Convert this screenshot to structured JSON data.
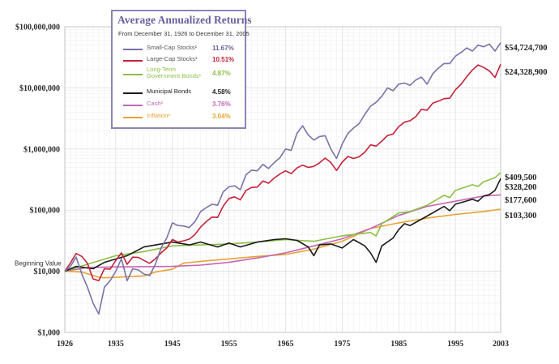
{
  "chart_data": {
    "type": "line",
    "title": "Average Annualized Returns",
    "subtitle": "From December 31, 1926 to December 31, 2005",
    "y_scale": "log",
    "ylim": [
      1000,
      100000000
    ],
    "xlim": [
      1926,
      2003
    ],
    "y_ticks": [
      {
        "value": 100000000,
        "label": "$100,000,000"
      },
      {
        "value": 10000000,
        "label": "$10,000,000"
      },
      {
        "value": 1000000,
        "label": "$1,000,000"
      },
      {
        "value": 100000,
        "label": "$100,000"
      },
      {
        "value": 10000,
        "label": "$10,000"
      },
      {
        "value": 1000,
        "label": "$1,000"
      }
    ],
    "x_ticks": [
      {
        "value": 1926,
        "label": "1926"
      },
      {
        "value": 1935,
        "label": "1935"
      },
      {
        "value": 1945,
        "label": "1945"
      },
      {
        "value": 1955,
        "label": "1955"
      },
      {
        "value": 1965,
        "label": "1965"
      },
      {
        "value": 1975,
        "label": "1975"
      },
      {
        "value": 1985,
        "label": "1985"
      },
      {
        "value": 1995,
        "label": "1995"
      },
      {
        "value": 2003,
        "label": "2003"
      }
    ],
    "baseline_label": "Beginning Value",
    "series": [
      {
        "name": "Small-Cap Stocks",
        "marker": "¹",
        "return": "11.67%",
        "color": "#7a72aa",
        "end_label": "$54,724,700",
        "points": [
          [
            1926,
            10000
          ],
          [
            1927,
            12000
          ],
          [
            1928,
            17000
          ],
          [
            1929,
            9000
          ],
          [
            1930,
            5500
          ],
          [
            1931,
            3000
          ],
          [
            1932,
            2000
          ],
          [
            1933,
            5500
          ],
          [
            1934,
            7000
          ],
          [
            1935,
            10000
          ],
          [
            1936,
            16000
          ],
          [
            1937,
            7000
          ],
          [
            1938,
            11000
          ],
          [
            1939,
            10500
          ],
          [
            1940,
            9000
          ],
          [
            1941,
            8500
          ],
          [
            1942,
            13000
          ],
          [
            1943,
            24000
          ],
          [
            1944,
            35000
          ],
          [
            1945,
            62000
          ],
          [
            1946,
            56000
          ],
          [
            1947,
            55000
          ],
          [
            1948,
            52000
          ],
          [
            1949,
            65000
          ],
          [
            1950,
            95000
          ],
          [
            1951,
            110000
          ],
          [
            1952,
            125000
          ],
          [
            1953,
            120000
          ],
          [
            1954,
            200000
          ],
          [
            1955,
            240000
          ],
          [
            1956,
            250000
          ],
          [
            1957,
            215000
          ],
          [
            1958,
            380000
          ],
          [
            1959,
            450000
          ],
          [
            1960,
            440000
          ],
          [
            1961,
            560000
          ],
          [
            1962,
            480000
          ],
          [
            1963,
            600000
          ],
          [
            1964,
            720000
          ],
          [
            1965,
            1000000
          ],
          [
            1966,
            950000
          ],
          [
            1967,
            1800000
          ],
          [
            1968,
            2400000
          ],
          [
            1969,
            1700000
          ],
          [
            1970,
            1400000
          ],
          [
            1971,
            1600000
          ],
          [
            1972,
            1650000
          ],
          [
            1973,
            1000000
          ],
          [
            1974,
            700000
          ],
          [
            1975,
            1200000
          ],
          [
            1976,
            1800000
          ],
          [
            1977,
            2200000
          ],
          [
            1978,
            2600000
          ],
          [
            1979,
            3700000
          ],
          [
            1980,
            5000000
          ],
          [
            1981,
            5800000
          ],
          [
            1982,
            7300000
          ],
          [
            1983,
            10000000
          ],
          [
            1984,
            9000000
          ],
          [
            1985,
            11500000
          ],
          [
            1986,
            12000000
          ],
          [
            1987,
            11000000
          ],
          [
            1988,
            13500000
          ],
          [
            1989,
            15000000
          ],
          [
            1990,
            11500000
          ],
          [
            1991,
            17000000
          ],
          [
            1992,
            21000000
          ],
          [
            1993,
            25000000
          ],
          [
            1994,
            25000000
          ],
          [
            1995,
            33000000
          ],
          [
            1996,
            38000000
          ],
          [
            1997,
            45000000
          ],
          [
            1998,
            40000000
          ],
          [
            1999,
            50000000
          ],
          [
            2000,
            47000000
          ],
          [
            2001,
            52000000
          ],
          [
            2002,
            40000000
          ],
          [
            2003,
            54724700
          ]
        ]
      },
      {
        "name": "Large-Cap Stocks",
        "marker": "¹",
        "return": "10.51%",
        "color": "#c5213a",
        "end_label": "$24,328,900",
        "points": [
          [
            1926,
            10000
          ],
          [
            1927,
            13700
          ],
          [
            1928,
            19500
          ],
          [
            1929,
            17500
          ],
          [
            1930,
            13500
          ],
          [
            1931,
            7500
          ],
          [
            1932,
            7000
          ],
          [
            1933,
            11000
          ],
          [
            1934,
            10800
          ],
          [
            1935,
            15000
          ],
          [
            1936,
            20000
          ],
          [
            1937,
            13000
          ],
          [
            1938,
            17000
          ],
          [
            1939,
            16800
          ],
          [
            1940,
            15000
          ],
          [
            1941,
            13500
          ],
          [
            1942,
            16000
          ],
          [
            1943,
            20000
          ],
          [
            1944,
            24000
          ],
          [
            1945,
            33000
          ],
          [
            1946,
            30000
          ],
          [
            1947,
            31500
          ],
          [
            1948,
            33500
          ],
          [
            1949,
            40000
          ],
          [
            1950,
            53000
          ],
          [
            1951,
            65000
          ],
          [
            1952,
            77000
          ],
          [
            1953,
            76000
          ],
          [
            1954,
            117000
          ],
          [
            1955,
            155000
          ],
          [
            1956,
            165000
          ],
          [
            1957,
            147000
          ],
          [
            1958,
            210000
          ],
          [
            1959,
            235000
          ],
          [
            1960,
            238000
          ],
          [
            1961,
            300000
          ],
          [
            1962,
            275000
          ],
          [
            1963,
            335000
          ],
          [
            1964,
            390000
          ],
          [
            1965,
            440000
          ],
          [
            1966,
            395000
          ],
          [
            1967,
            490000
          ],
          [
            1968,
            545000
          ],
          [
            1969,
            500000
          ],
          [
            1970,
            520000
          ],
          [
            1971,
            595000
          ],
          [
            1972,
            710000
          ],
          [
            1973,
            600000
          ],
          [
            1974,
            445000
          ],
          [
            1975,
            610000
          ],
          [
            1976,
            755000
          ],
          [
            1977,
            700000
          ],
          [
            1978,
            745000
          ],
          [
            1979,
            885000
          ],
          [
            1980,
            1170000
          ],
          [
            1981,
            1115000
          ],
          [
            1982,
            1350000
          ],
          [
            1983,
            1660000
          ],
          [
            1984,
            1760000
          ],
          [
            1985,
            2320000
          ],
          [
            1986,
            2750000
          ],
          [
            1987,
            2900000
          ],
          [
            1988,
            3380000
          ],
          [
            1989,
            4450000
          ],
          [
            1990,
            4320000
          ],
          [
            1991,
            5630000
          ],
          [
            1992,
            6060000
          ],
          [
            1993,
            6670000
          ],
          [
            1994,
            6760000
          ],
          [
            1995,
            9300000
          ],
          [
            1996,
            11440000
          ],
          [
            1997,
            15250000
          ],
          [
            1998,
            19610000
          ],
          [
            1999,
            23740000
          ],
          [
            2000,
            21580000
          ],
          [
            2001,
            19010000
          ],
          [
            2002,
            14810000
          ],
          [
            2003,
            24328900
          ]
        ]
      },
      {
        "name": "Long-Term Government Bonds",
        "marker": "¹",
        "return": "4.87%",
        "color": "#8cbf45",
        "end_label": "$409,500",
        "points": [
          [
            1926,
            10000
          ],
          [
            1930,
            13000
          ],
          [
            1935,
            18000
          ],
          [
            1940,
            21000
          ],
          [
            1945,
            26000
          ],
          [
            1950,
            27000
          ],
          [
            1955,
            28000
          ],
          [
            1960,
            30000
          ],
          [
            1965,
            33000
          ],
          [
            1970,
            31000
          ],
          [
            1975,
            38000
          ],
          [
            1980,
            43000
          ],
          [
            1981,
            38000
          ],
          [
            1982,
            60000
          ],
          [
            1985,
            90000
          ],
          [
            1987,
            95000
          ],
          [
            1990,
            120000
          ],
          [
            1993,
            175000
          ],
          [
            1994,
            160000
          ],
          [
            1995,
            210000
          ],
          [
            1998,
            260000
          ],
          [
            1999,
            245000
          ],
          [
            2000,
            290000
          ],
          [
            2002,
            340000
          ],
          [
            2003,
            409500
          ]
        ]
      },
      {
        "name": "Municipal Bonds",
        "marker": "",
        "return": "4.58%",
        "color": "#1a1a1a",
        "end_label": "$328,200",
        "points": [
          [
            1926,
            10000
          ],
          [
            1928,
            12000
          ],
          [
            1931,
            11000
          ],
          [
            1933,
            14000
          ],
          [
            1937,
            18000
          ],
          [
            1940,
            25000
          ],
          [
            1945,
            30000
          ],
          [
            1948,
            27000
          ],
          [
            1950,
            30000
          ],
          [
            1953,
            25000
          ],
          [
            1955,
            29000
          ],
          [
            1957,
            25000
          ],
          [
            1960,
            30000
          ],
          [
            1963,
            33000
          ],
          [
            1965,
            34000
          ],
          [
            1967,
            32000
          ],
          [
            1969,
            25000
          ],
          [
            1970,
            18000
          ],
          [
            1971,
            27000
          ],
          [
            1973,
            28000
          ],
          [
            1975,
            24000
          ],
          [
            1977,
            33000
          ],
          [
            1979,
            26000
          ],
          [
            1980,
            20000
          ],
          [
            1981,
            14000
          ],
          [
            1982,
            26000
          ],
          [
            1984,
            35000
          ],
          [
            1985,
            48000
          ],
          [
            1986,
            60000
          ],
          [
            1987,
            56000
          ],
          [
            1990,
            80000
          ],
          [
            1993,
            115000
          ],
          [
            1994,
            98000
          ],
          [
            1995,
            125000
          ],
          [
            1998,
            150000
          ],
          [
            1999,
            140000
          ],
          [
            2000,
            170000
          ],
          [
            2001,
            180000
          ],
          [
            2002,
            210000
          ],
          [
            2003,
            328200
          ]
        ]
      },
      {
        "name": "Cash",
        "marker": "²",
        "return": "3.76%",
        "color": "#c466b4",
        "end_label": "$177,600",
        "points": [
          [
            1926,
            10000
          ],
          [
            1930,
            11500
          ],
          [
            1935,
            11800
          ],
          [
            1940,
            11900
          ],
          [
            1945,
            12000
          ],
          [
            1950,
            12600
          ],
          [
            1955,
            14000
          ],
          [
            1960,
            16500
          ],
          [
            1965,
            20000
          ],
          [
            1970,
            26000
          ],
          [
            1975,
            34000
          ],
          [
            1980,
            50000
          ],
          [
            1985,
            82000
          ],
          [
            1990,
            115000
          ],
          [
            1995,
            140000
          ],
          [
            2000,
            170000
          ],
          [
            2003,
            177600
          ]
        ]
      },
      {
        "name": "Inflation",
        "marker": "³",
        "return": "3.04%",
        "color": "#e6a334",
        "end_label": "$103,300",
        "points": [
          [
            1926,
            10000
          ],
          [
            1929,
            9700
          ],
          [
            1932,
            8000
          ],
          [
            1933,
            7800
          ],
          [
            1940,
            8400
          ],
          [
            1942,
            9700
          ],
          [
            1945,
            10800
          ],
          [
            1947,
            13600
          ],
          [
            1950,
            14500
          ],
          [
            1955,
            15900
          ],
          [
            1960,
            17500
          ],
          [
            1965,
            18800
          ],
          [
            1970,
            23000
          ],
          [
            1975,
            31000
          ],
          [
            1980,
            50000
          ],
          [
            1985,
            62000
          ],
          [
            1990,
            74000
          ],
          [
            1995,
            85000
          ],
          [
            2000,
            95000
          ],
          [
            2003,
            103300
          ]
        ]
      }
    ]
  }
}
